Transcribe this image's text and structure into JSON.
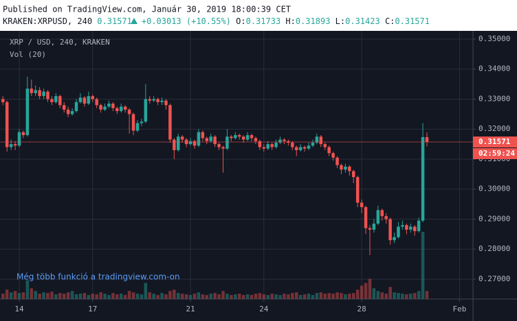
{
  "header": {
    "published": "Published on TradingView.com, Január 30, 2019 18:00:39 CET",
    "symbol": "KRAKEN:XRPUSD, 240",
    "last": "0.31571",
    "change": "+0.03013 (+10.55%)",
    "o_label": "O:",
    "o": "0.31733",
    "h_label": "H:",
    "h": "0.31893",
    "l_label": "L:",
    "l": "0.31423",
    "c_label": "C:",
    "c": "0.31571"
  },
  "chart_data": {
    "type": "candlestick",
    "title": "XRP / USD, 240, KRAKEN",
    "volume_title": "Vol (20)",
    "watermark": "Még több funkció a tradingview.com-on",
    "last_price_label": "0.31571",
    "countdown": "02:59:24",
    "up_color": "#26a69a",
    "down_color": "#ef5350",
    "grid": true,
    "xlim": [
      -0.72,
      115.3
    ],
    "xticks": [
      {
        "value": 4,
        "label": "14"
      },
      {
        "value": 22,
        "label": "17"
      },
      {
        "value": 46,
        "label": "21"
      },
      {
        "value": 64,
        "label": "24"
      },
      {
        "value": 88,
        "label": "28"
      },
      {
        "value": 112,
        "label": "Feb"
      }
    ],
    "ylim": [
      0.26337,
      0.35274
    ],
    "yticks": [
      {
        "value": 0.27,
        "label": "0.27000"
      },
      {
        "value": 0.28,
        "label": "0.28000"
      },
      {
        "value": 0.29,
        "label": "0.29000"
      },
      {
        "value": 0.3,
        "label": "0.30000"
      },
      {
        "value": 0.31,
        "label": "0.31000"
      },
      {
        "value": 0.32,
        "label": "0.32000"
      },
      {
        "value": 0.33,
        "label": "0.33000"
      },
      {
        "value": 0.34,
        "label": "0.34000"
      },
      {
        "value": 0.35,
        "label": "0.35000"
      }
    ],
    "open": [
      0.33,
      0.329,
      0.314,
      0.315,
      0.3145,
      0.319,
      0.318,
      0.3335,
      0.332,
      0.333,
      0.331,
      0.3325,
      0.33,
      0.329,
      0.331,
      0.328,
      0.3265,
      0.325,
      0.326,
      0.329,
      0.3305,
      0.3285,
      0.331,
      0.33,
      0.328,
      0.3265,
      0.3275,
      0.3285,
      0.327,
      0.326,
      0.3275,
      0.3265,
      0.325,
      0.3195,
      0.322,
      0.3225,
      0.33,
      0.3295,
      0.33,
      0.329,
      0.3295,
      0.328,
      0.3165,
      0.313,
      0.3175,
      0.3165,
      0.315,
      0.316,
      0.3145,
      0.319,
      0.317,
      0.316,
      0.3175,
      0.315,
      0.314,
      0.3135,
      0.3175,
      0.317,
      0.318,
      0.3175,
      0.3165,
      0.318,
      0.317,
      0.316,
      0.314,
      0.3135,
      0.315,
      0.314,
      0.3155,
      0.3165,
      0.316,
      0.3155,
      0.314,
      0.313,
      0.314,
      0.3135,
      0.3145,
      0.3155,
      0.3175,
      0.315,
      0.314,
      0.312,
      0.3105,
      0.308,
      0.3065,
      0.3075,
      0.306,
      0.304,
      0.2955,
      0.294,
      0.287,
      0.2865,
      0.2885,
      0.293,
      0.291,
      0.29,
      0.283,
      0.284,
      0.2875,
      0.288,
      0.2865,
      0.2875,
      0.286,
      0.2895,
      0.31733
    ],
    "high": [
      0.331,
      0.3295,
      0.3165,
      0.316,
      0.32,
      0.3195,
      0.3375,
      0.3365,
      0.3345,
      0.334,
      0.3335,
      0.333,
      0.331,
      0.332,
      0.3315,
      0.329,
      0.3275,
      0.327,
      0.33,
      0.332,
      0.331,
      0.3325,
      0.3315,
      0.3305,
      0.3285,
      0.3285,
      0.3295,
      0.329,
      0.3275,
      0.3285,
      0.328,
      0.327,
      0.3255,
      0.323,
      0.3235,
      0.335,
      0.331,
      0.331,
      0.3305,
      0.3305,
      0.33,
      0.3285,
      0.317,
      0.3185,
      0.318,
      0.317,
      0.317,
      0.3165,
      0.32,
      0.3195,
      0.3175,
      0.3185,
      0.318,
      0.3155,
      0.3145,
      0.32,
      0.318,
      0.319,
      0.3185,
      0.318,
      0.319,
      0.3185,
      0.3175,
      0.3165,
      0.315,
      0.316,
      0.3155,
      0.3165,
      0.3175,
      0.317,
      0.3165,
      0.316,
      0.3145,
      0.315,
      0.3145,
      0.3155,
      0.3165,
      0.3185,
      0.318,
      0.3155,
      0.3145,
      0.3125,
      0.311,
      0.3085,
      0.3085,
      0.308,
      0.3065,
      0.3045,
      0.2965,
      0.2945,
      0.288,
      0.29,
      0.2945,
      0.2935,
      0.292,
      0.2905,
      0.2855,
      0.289,
      0.2895,
      0.2885,
      0.2885,
      0.288,
      0.2905,
      0.322,
      0.31893
    ],
    "low": [
      0.328,
      0.3125,
      0.313,
      0.313,
      0.314,
      0.317,
      0.3175,
      0.331,
      0.331,
      0.33,
      0.33,
      0.329,
      0.328,
      0.3285,
      0.327,
      0.3255,
      0.324,
      0.3245,
      0.3255,
      0.3285,
      0.3275,
      0.328,
      0.329,
      0.327,
      0.3255,
      0.326,
      0.327,
      0.326,
      0.325,
      0.3255,
      0.3255,
      0.3185,
      0.318,
      0.319,
      0.321,
      0.322,
      0.3285,
      0.329,
      0.328,
      0.328,
      0.3265,
      0.3155,
      0.31,
      0.3125,
      0.3155,
      0.314,
      0.3145,
      0.3135,
      0.314,
      0.316,
      0.315,
      0.3155,
      0.314,
      0.313,
      0.3055,
      0.313,
      0.316,
      0.3165,
      0.3165,
      0.3155,
      0.316,
      0.316,
      0.315,
      0.313,
      0.3125,
      0.313,
      0.313,
      0.3135,
      0.315,
      0.315,
      0.3145,
      0.313,
      0.311,
      0.3125,
      0.3125,
      0.313,
      0.314,
      0.315,
      0.314,
      0.313,
      0.311,
      0.3095,
      0.307,
      0.305,
      0.3055,
      0.3045,
      0.302,
      0.294,
      0.292,
      0.285,
      0.278,
      0.2855,
      0.288,
      0.2895,
      0.2885,
      0.2815,
      0.282,
      0.2835,
      0.2865,
      0.285,
      0.2855,
      0.2845,
      0.2855,
      0.289,
      0.31423
    ],
    "close": [
      0.329,
      0.314,
      0.315,
      0.3145,
      0.319,
      0.318,
      0.3335,
      0.332,
      0.333,
      0.331,
      0.3325,
      0.33,
      0.329,
      0.331,
      0.328,
      0.3265,
      0.325,
      0.326,
      0.329,
      0.3305,
      0.3285,
      0.331,
      0.33,
      0.328,
      0.3265,
      0.3275,
      0.3285,
      0.327,
      0.326,
      0.3275,
      0.3265,
      0.325,
      0.3195,
      0.322,
      0.3225,
      0.33,
      0.3295,
      0.33,
      0.329,
      0.3295,
      0.328,
      0.3165,
      0.313,
      0.3175,
      0.3165,
      0.315,
      0.316,
      0.3145,
      0.319,
      0.317,
      0.316,
      0.3175,
      0.315,
      0.314,
      0.3135,
      0.3175,
      0.317,
      0.318,
      0.3175,
      0.3165,
      0.318,
      0.317,
      0.316,
      0.314,
      0.3135,
      0.315,
      0.314,
      0.3155,
      0.3165,
      0.316,
      0.3155,
      0.314,
      0.313,
      0.314,
      0.3135,
      0.3145,
      0.3155,
      0.3175,
      0.315,
      0.314,
      0.312,
      0.3105,
      0.308,
      0.3065,
      0.3075,
      0.306,
      0.304,
      0.2955,
      0.294,
      0.287,
      0.2865,
      0.2885,
      0.293,
      0.291,
      0.29,
      0.283,
      0.284,
      0.2875,
      0.288,
      0.2865,
      0.2875,
      0.286,
      0.2895,
      0.31733,
      0.31571
    ],
    "volume": [
      8,
      14,
      10,
      12,
      9,
      10,
      28,
      16,
      12,
      8,
      10,
      9,
      11,
      7,
      9,
      8,
      10,
      12,
      7,
      8,
      9,
      6,
      8,
      7,
      10,
      8,
      6,
      9,
      7,
      8,
      6,
      12,
      10,
      8,
      7,
      24,
      10,
      8,
      6,
      9,
      7,
      12,
      14,
      9,
      8,
      7,
      6,
      8,
      10,
      7,
      6,
      8,
      9,
      7,
      12,
      8,
      6,
      7,
      8,
      6,
      7,
      6,
      8,
      9,
      7,
      6,
      8,
      7,
      6,
      8,
      7,
      9,
      10,
      6,
      7,
      8,
      6,
      9,
      10,
      8,
      9,
      8,
      10,
      9,
      7,
      8,
      9,
      14,
      20,
      24,
      30,
      16,
      12,
      10,
      8,
      18,
      10,
      9,
      8,
      7,
      8,
      9,
      12,
      100,
      12
    ]
  }
}
